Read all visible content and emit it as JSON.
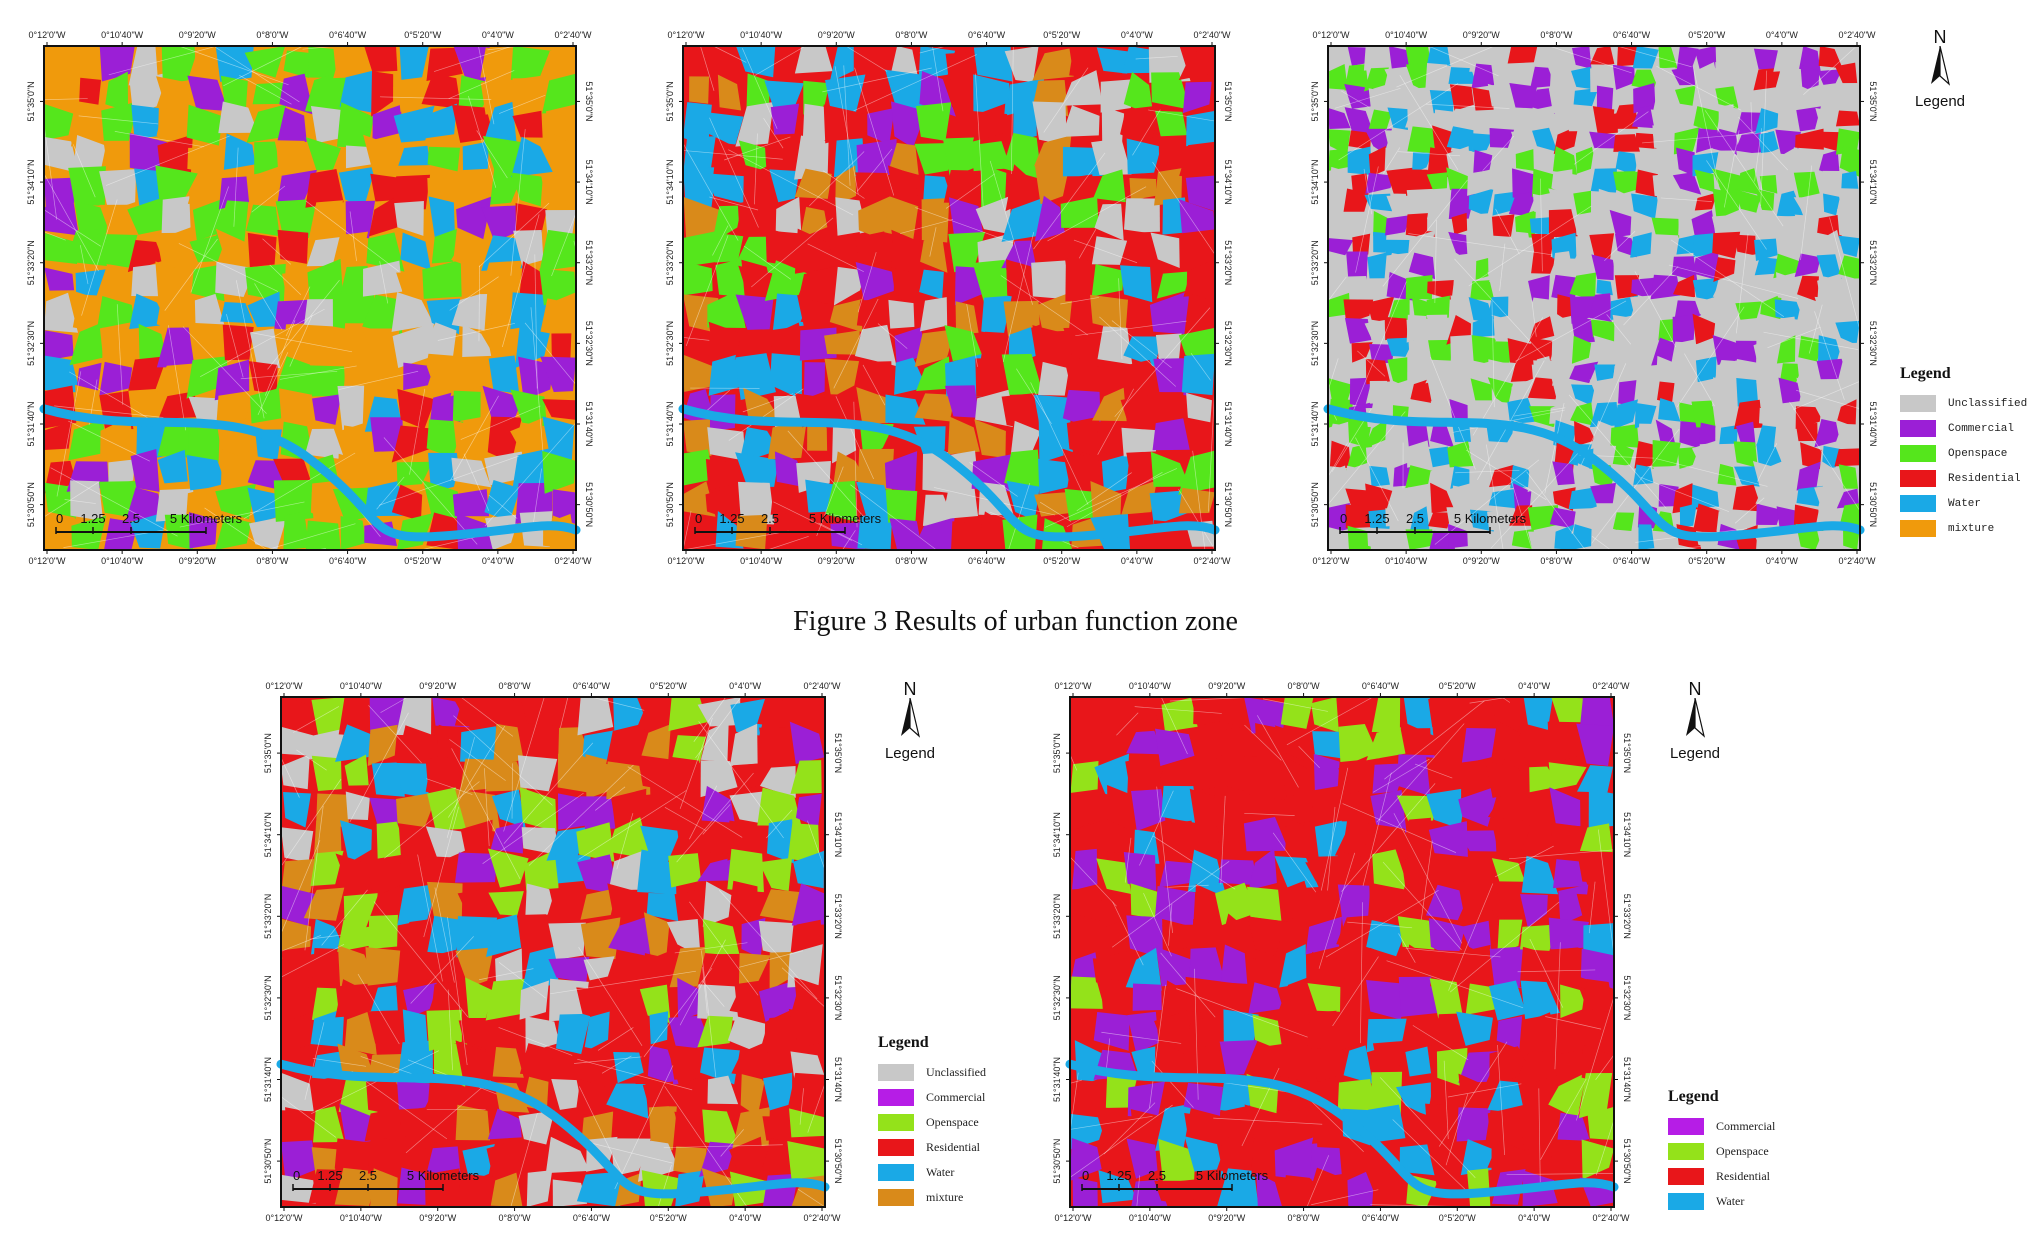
{
  "caption": "Figure 3 Results of urban function zone",
  "lon_ticks": [
    "0°12'0\"W",
    "0°10'40\"W",
    "0°9'20\"W",
    "0°8'0\"W",
    "0°6'40\"W",
    "0°5'20\"W",
    "0°4'0\"W",
    "0°2'40\"W"
  ],
  "lat_ticks": [
    "51°35'0\"N",
    "51°34'10\"N",
    "51°33'20\"N",
    "51°32'30\"N",
    "51°31'40\"N",
    "51°30'50\"N"
  ],
  "scale": {
    "zero": "0",
    "a": "1.25",
    "b": "2.5",
    "c": "5 Kilometers"
  },
  "colors": {
    "unclassified": "#c8c8c8",
    "commercial": "#9b1fd6",
    "openspace": "#55e61c",
    "openspace_lime": "#94e21a",
    "residential": "#e8161a",
    "water": "#1aa9e6",
    "mixture": "#f09a0c",
    "mixture_dark": "#d98a1a"
  },
  "north": {
    "letter": "N",
    "label": "Legend"
  },
  "legend_a": {
    "title": "Legend",
    "items": [
      {
        "label": "Unclassified",
        "color": "#c8c8c8"
      },
      {
        "label": "Commercial",
        "color": "#9b1fd6"
      },
      {
        "label": "Openspace",
        "color": "#55e61c"
      },
      {
        "label": "Residential",
        "color": "#e8161a"
      },
      {
        "label": "Water",
        "color": "#1aa9e6"
      },
      {
        "label": "mixture",
        "color": "#f09a0c"
      }
    ]
  },
  "legend_b": {
    "title": "Legend",
    "items": [
      {
        "label": "Unclassified",
        "color": "#c8c8c8"
      },
      {
        "label": "Commercial",
        "color": "#b61de6"
      },
      {
        "label": "Openspace",
        "color": "#94e21a"
      },
      {
        "label": "Residential",
        "color": "#e8161a"
      },
      {
        "label": "Water",
        "color": "#1aa9e6"
      },
      {
        "label": "mixture",
        "color": "#d98a1a"
      }
    ]
  },
  "legend_c": {
    "title": "Legend",
    "items": [
      {
        "label": "Commercial",
        "color": "#b61de6"
      },
      {
        "label": "Openspace",
        "color": "#94e21a"
      },
      {
        "label": "Residential",
        "color": "#e8161a"
      },
      {
        "label": "Water",
        "color": "#1aa9e6"
      }
    ]
  },
  "maps": [
    {
      "id": "map-1",
      "palette": [
        "mixture",
        "openspace",
        "openspace",
        "mixture",
        "residential",
        "commercial",
        "water",
        "unclassified"
      ]
    },
    {
      "id": "map-2",
      "palette": [
        "residential",
        "residential",
        "openspace",
        "commercial",
        "mixture_dark",
        "water",
        "unclassified"
      ]
    },
    {
      "id": "map-3",
      "palette": [
        "unclassified",
        "unclassified",
        "unclassified",
        "residential",
        "commercial",
        "openspace",
        "water"
      ]
    },
    {
      "id": "map-4",
      "palette": [
        "residential",
        "residential",
        "commercial",
        "openspace_lime",
        "water",
        "mixture_dark",
        "unclassified"
      ]
    },
    {
      "id": "map-5",
      "palette": [
        "residential",
        "residential",
        "residential",
        "openspace_lime",
        "commercial",
        "water"
      ]
    }
  ]
}
